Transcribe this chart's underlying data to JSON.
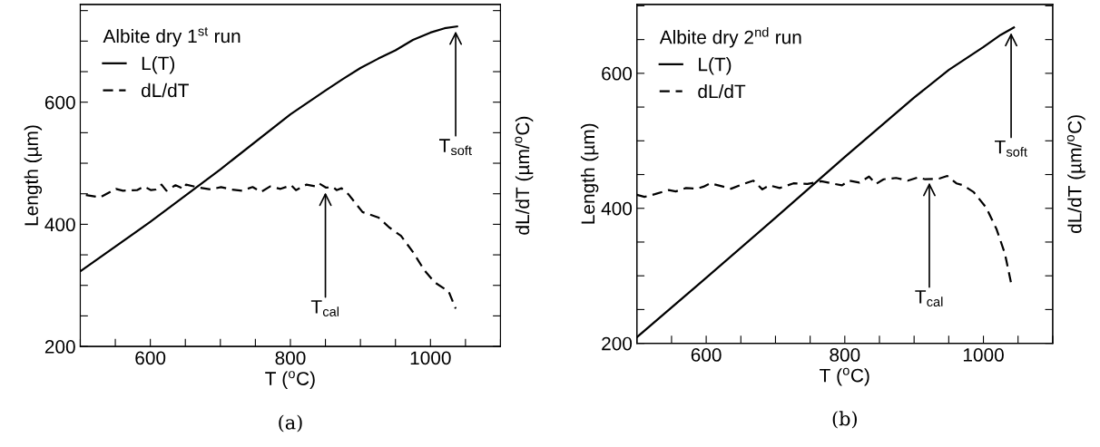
{
  "chart_data": [
    {
      "type": "line",
      "legend_title": "Albite dry 1$^{st}$ run",
      "xlabel": "T ($^{o}$C)",
      "ylabel": "Length (µm)",
      "y2label": "dL/dT (µm/$^{o}$C)",
      "xlim": [
        500,
        1100
      ],
      "xticks": [
        {
          "value": 500,
          "label": null
        },
        {
          "value": 550,
          "label": null
        },
        600,
        {
          "value": 650,
          "label": null
        },
        {
          "value": 700,
          "label": null
        },
        {
          "value": 750,
          "label": null
        },
        800,
        {
          "value": 850,
          "label": null
        },
        {
          "value": 900,
          "label": null
        },
        {
          "value": 950,
          "label": null
        },
        1000,
        {
          "value": 1050,
          "label": null
        },
        {
          "value": 1100,
          "label": null
        }
      ],
      "ylim": [
        200,
        760
      ],
      "yticks": [
        200,
        {
          "value": 250,
          "label": null
        },
        {
          "value": 300,
          "label": null
        },
        {
          "value": 350,
          "label": null
        },
        400,
        {
          "value": 450,
          "label": null
        },
        {
          "value": 500,
          "label": null
        },
        {
          "value": 550,
          "label": null
        },
        600,
        {
          "value": 650,
          "label": null
        },
        {
          "value": 700,
          "label": null
        },
        {
          "value": 750,
          "label": null
        }
      ],
      "grid": false,
      "legend": "top left",
      "marker": "none",
      "series": [
        {
          "name": "L(T)",
          "color": "#000000",
          "line_style": "solid",
          "x": [
            500,
            600,
            700,
            800,
            850,
            875,
            900,
            925,
            950,
            975,
            1000,
            1020,
            1038
          ],
          "values": [
            323,
            404,
            490,
            580,
            619,
            638,
            656,
            671,
            685,
            702,
            714,
            721,
            724
          ]
        },
        {
          "name": "dL/dT",
          "color": "#000000",
          "line_style": "dashed",
          "x": [
            508,
            528,
            551,
            561,
            581,
            591,
            601,
            608,
            616,
            623,
            636,
            648,
            651,
            666,
            686,
            701,
            716,
            731,
            746,
            758,
            771,
            786,
            801,
            808,
            823,
            836,
            841,
            851,
            861,
            866,
            873,
            883,
            903,
            926,
            941,
            958,
            976,
            991,
            1006,
            1026,
            1036
          ],
          "values": [
            448,
            444,
            458,
            455,
            456,
            462,
            456,
            457,
            465,
            455,
            464,
            458,
            465,
            461,
            457,
            461,
            457,
            455,
            461,
            453,
            462,
            458,
            464,
            456,
            465,
            462,
            467,
            460,
            461,
            456,
            459,
            449,
            420,
            411,
            395,
            381,
            353,
            325,
            305,
            290,
            262
          ]
        }
      ],
      "annotations": [
        {
          "text": "T$_{soft}$",
          "x": 1036,
          "y": 716
        },
        {
          "text": "T$_{cal}$",
          "x": 850,
          "y": 452
        },
        "(a)"
      ]
    },
    {
      "type": "line",
      "legend_title": "Albite dry 2$^{nd}$ run",
      "xlabel": "T ($^{o}$C)",
      "ylabel": "Length (µm)",
      "y2label": "dL/dT (µm/$^{o}$C)",
      "xlim": [
        500,
        1100
      ],
      "xticks": [
        {
          "value": 500,
          "label": null
        },
        {
          "value": 550,
          "label": null
        },
        600,
        {
          "value": 650,
          "label": null
        },
        {
          "value": 700,
          "label": null
        },
        {
          "value": 750,
          "label": null
        },
        800,
        {
          "value": 850,
          "label": null
        },
        {
          "value": 900,
          "label": null
        },
        {
          "value": 950,
          "label": null
        },
        1000,
        {
          "value": 1050,
          "label": null
        },
        {
          "value": 1100,
          "label": null
        }
      ],
      "ylim": [
        200,
        702
      ],
      "yticks": [
        200,
        {
          "value": 250,
          "label": null
        },
        {
          "value": 300,
          "label": null
        },
        {
          "value": 350,
          "label": null
        },
        400,
        {
          "value": 450,
          "label": null
        },
        {
          "value": 500,
          "label": null
        },
        {
          "value": 550,
          "label": null
        },
        600,
        {
          "value": 650,
          "label": null
        },
        {
          "value": 700,
          "label": null
        }
      ],
      "grid": false,
      "legend": "top left",
      "marker": "none",
      "series": [
        {
          "name": "L(T)",
          "color": "#000000",
          "line_style": "solid",
          "x": [
            500,
            600,
            700,
            800,
            900,
            950,
            1000,
            1025,
            1044
          ],
          "values": [
            209,
            297,
            386,
            476,
            564,
            605,
            639,
            657,
            668
          ]
        },
        {
          "name": "dL/dT",
          "color": "#000000",
          "line_style": "dashed",
          "x": [
            500,
            511,
            526,
            546,
            556,
            571,
            586,
            596,
            606,
            621,
            636,
            651,
            668,
            681,
            691,
            706,
            726,
            746,
            766,
            781,
            796,
            806,
            821,
            835,
            845,
            856,
            874,
            891,
            906,
            916,
            936,
            948,
            961,
            971,
            986,
            1004,
            1019,
            1031,
            1040
          ],
          "values": [
            420,
            417,
            421,
            427,
            425,
            430,
            429,
            432,
            437,
            433,
            429,
            435,
            441,
            428,
            434,
            430,
            437,
            436,
            440,
            437,
            434,
            441,
            438,
            447,
            436,
            443,
            445,
            441,
            446,
            443,
            444,
            448,
            437,
            434,
            424,
            401,
            369,
            333,
            289
          ]
        }
      ],
      "annotations": [
        {
          "text": "T$_{soft}$",
          "x": 1040,
          "y": 660
        },
        {
          "text": "T$_{cal}$",
          "x": 922,
          "y": 438
        },
        "(b)"
      ]
    }
  ]
}
